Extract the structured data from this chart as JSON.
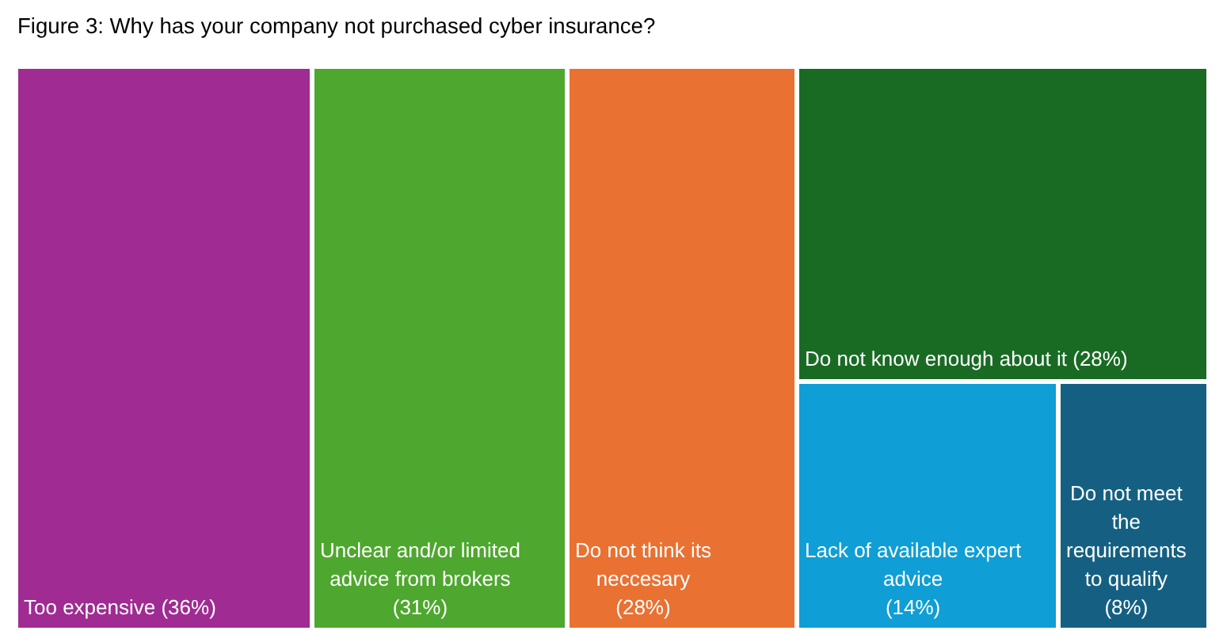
{
  "chart_data": {
    "type": "other",
    "title": "Figure 3: Why has your company not purchased cyber insurance?",
    "categories": [
      "Too expensive",
      "Unclear and/or limited advice from brokers",
      "Do not think its neccesary",
      "Do not know enough about it",
      "Lack of available expert advice",
      "Do not meet the requirements to qualify"
    ],
    "values": [
      36,
      31,
      28,
      28,
      14,
      8
    ],
    "value_labels": [
      "(36%)",
      "(31%)",
      "(28%)",
      "(28%)",
      "(14%)",
      "(8%)"
    ],
    "colors": [
      "#a02b93",
      "#4ea72e",
      "#e97132",
      "#196b24",
      "#0f9ed5",
      "#156082"
    ]
  }
}
